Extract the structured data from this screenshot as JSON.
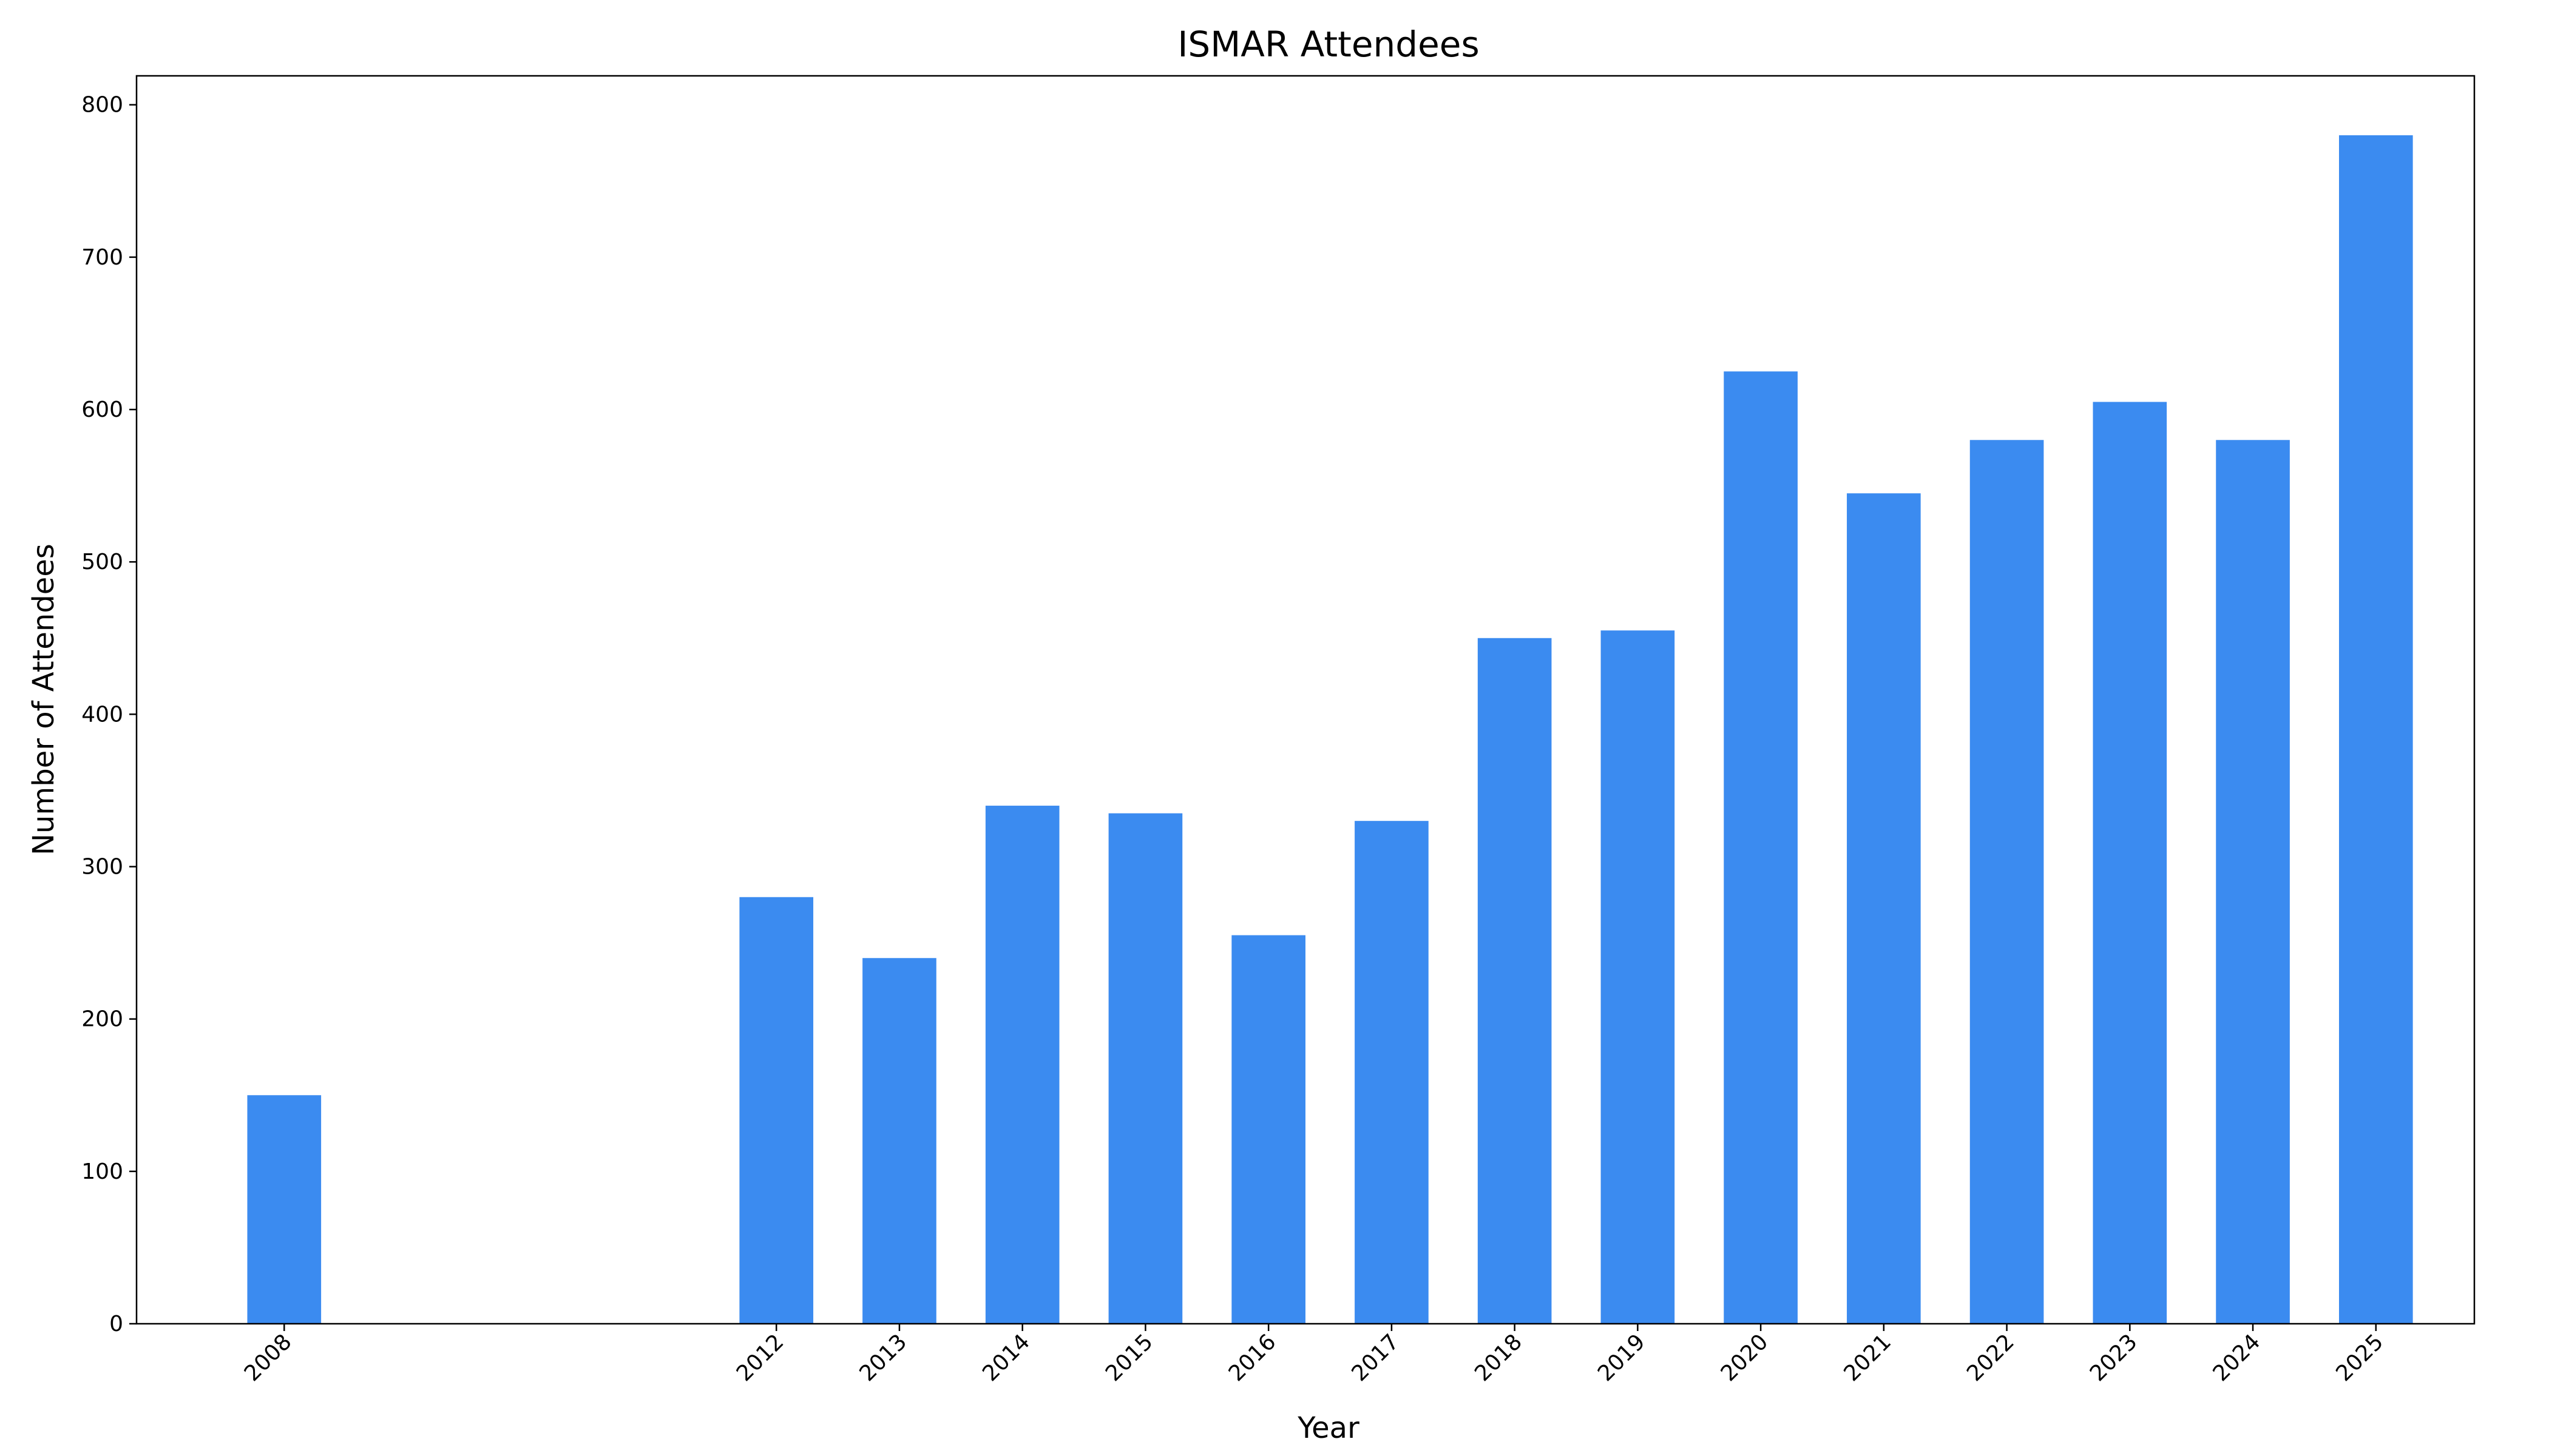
{
  "chart_data": {
    "type": "bar",
    "title": "ISMAR Attendees",
    "x_label": "Year",
    "y_label": "Number of Attendees",
    "x": [
      2008,
      2012,
      2013,
      2014,
      2015,
      2016,
      2017,
      2018,
      2019,
      2020,
      2021,
      2022,
      2023,
      2024,
      2025
    ],
    "values": [
      150,
      280,
      240,
      340,
      335,
      255,
      330,
      450,
      455,
      625,
      545,
      580,
      605,
      580,
      780
    ],
    "color": "#3b8bf0",
    "xlim": [
      2006.8,
      2025.8
    ],
    "xticks": [
      2008,
      2012,
      2013,
      2014,
      2015,
      2016,
      2017,
      2018,
      2019,
      2020,
      2021,
      2022,
      2023,
      2024,
      2025
    ],
    "ylim": [
      0,
      819
    ],
    "yticks": [
      0,
      100,
      200,
      300,
      400,
      500,
      600,
      700,
      800
    ],
    "grid": false
  }
}
